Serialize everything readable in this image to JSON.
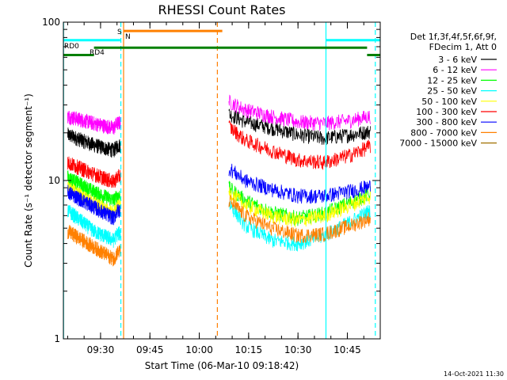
{
  "chart_data": {
    "type": "line",
    "title": "RHESSI Count Rates",
    "xlabel": "Start Time (06-Mar-10 09:18:42)",
    "ylabel": "Count Rate (s⁻¹ detector segment⁻¹)",
    "y_scale": "log",
    "ylim": [
      1,
      100
    ],
    "xlim": [
      "09:18:42",
      "10:55:00"
    ],
    "x_ticks": [
      "09:30",
      "09:45",
      "10:00",
      "10:15",
      "10:30",
      "10:45"
    ],
    "y_ticks": [
      "1",
      "10",
      "100"
    ],
    "grid": false,
    "legend_position": "right",
    "legend_header": [
      "Det 1f,3f,4f,5f,6f,9f,",
      "FDecim 1, Att 0"
    ],
    "series": [
      {
        "name": "3 - 6 keV",
        "color": "#000000",
        "x": [
          "09:20",
          "09:28",
          "09:34",
          "09:35",
          "10:09",
          "10:14",
          "10:22",
          "10:30",
          "10:38",
          "10:46",
          "10:52"
        ],
        "y": [
          19.5,
          16.8,
          15.5,
          16.5,
          26.5,
          23.5,
          21.5,
          19.5,
          18.5,
          19.5,
          20.5
        ]
      },
      {
        "name": "6 - 12 keV",
        "color": "#ff00ff",
        "x": [
          "09:20",
          "09:28",
          "09:34",
          "09:35",
          "10:09",
          "10:14",
          "10:22",
          "10:30",
          "10:38",
          "10:46",
          "10:52"
        ],
        "y": [
          25.5,
          23.0,
          21.5,
          23.0,
          31.5,
          28.0,
          25.5,
          23.5,
          23.0,
          24.0,
          25.5
        ]
      },
      {
        "name": "12 - 25 keV",
        "color": "#00ff00",
        "x": [
          "09:20",
          "09:28",
          "09:34",
          "09:35",
          "10:09",
          "10:14",
          "10:22",
          "10:30",
          "10:38",
          "10:46",
          "10:52"
        ],
        "y": [
          10.5,
          8.5,
          7.5,
          8.0,
          9.0,
          7.5,
          6.3,
          5.8,
          6.2,
          7.3,
          8.3
        ]
      },
      {
        "name": "25 - 50 keV",
        "color": "#00ffff",
        "x": [
          "09:20",
          "09:28",
          "09:34",
          "09:35",
          "10:09",
          "10:14",
          "10:22",
          "10:30",
          "10:38",
          "10:46",
          "10:52"
        ],
        "y": [
          6.5,
          4.8,
          4.2,
          4.6,
          7.2,
          5.2,
          4.2,
          4.0,
          4.5,
          5.5,
          6.5
        ]
      },
      {
        "name": "50 - 100 keV",
        "color": "#ffff00",
        "x": [
          "09:20",
          "09:28",
          "09:34",
          "09:35",
          "10:09",
          "10:14",
          "10:22",
          "10:30",
          "10:38",
          "10:46",
          "10:52"
        ],
        "y": [
          9.0,
          7.2,
          6.2,
          6.8,
          8.5,
          7.0,
          6.0,
          5.6,
          6.0,
          7.0,
          8.0
        ]
      },
      {
        "name": "100 - 300 keV",
        "color": "#ff0000",
        "x": [
          "09:20",
          "09:28",
          "09:34",
          "09:35",
          "10:09",
          "10:14",
          "10:22",
          "10:30",
          "10:38",
          "10:46",
          "10:52"
        ],
        "y": [
          13.0,
          11.0,
          9.8,
          10.5,
          22.0,
          18.0,
          15.5,
          13.5,
          13.0,
          14.5,
          16.5
        ]
      },
      {
        "name": "300 - 800 keV",
        "color": "#0000ff",
        "x": [
          "09:20",
          "09:28",
          "09:34",
          "09:35",
          "10:09",
          "10:14",
          "10:22",
          "10:30",
          "10:38",
          "10:46",
          "10:52"
        ],
        "y": [
          8.5,
          6.8,
          5.8,
          6.4,
          12.0,
          10.0,
          8.8,
          8.0,
          8.0,
          8.6,
          9.2
        ]
      },
      {
        "name": "800 - 7000 keV",
        "color": "#ff8000",
        "x": [
          "09:20",
          "09:28",
          "09:34",
          "09:35",
          "10:09",
          "10:14",
          "10:22",
          "10:30",
          "10:38",
          "10:46",
          "10:52"
        ],
        "y": [
          4.8,
          3.8,
          3.2,
          3.5,
          7.5,
          6.0,
          5.0,
          4.5,
          4.6,
          5.2,
          5.8
        ]
      },
      {
        "name": "7000 - 15000 keV",
        "color": "#a07000",
        "x": [],
        "y": []
      }
    ],
    "vertical_markers": [
      {
        "time": "09:18:45",
        "color": "#00ffff",
        "style": "solid"
      },
      {
        "time": "09:36:10",
        "color": "#00ffff",
        "style": "dashed"
      },
      {
        "time": "09:37:00",
        "color": "#ff8000",
        "style": "solid"
      },
      {
        "time": "10:05:30",
        "color": "#ff8000",
        "style": "dashed"
      },
      {
        "time": "10:38:30",
        "color": "#00ffff",
        "style": "solid"
      },
      {
        "time": "10:53:30",
        "color": "#00ffff",
        "style": "dashed"
      }
    ],
    "flag_bars": [
      {
        "label": "",
        "color": "#00ffff",
        "y": 77,
        "segments": [
          [
            "09:18:42",
            "09:36:00"
          ],
          [
            "10:38:30",
            "10:55:00"
          ]
        ]
      },
      {
        "label": "S",
        "color": "#ff8000",
        "y": 88,
        "segments": [
          [
            "09:37:00",
            "10:07:00"
          ]
        ]
      },
      {
        "label": "RD0",
        "color": "#008000",
        "y": 69,
        "segments": [
          [
            "09:28:00",
            "10:51:00"
          ]
        ]
      },
      {
        "label": "RD4",
        "color": "#008000",
        "y": 62,
        "segments": [
          [
            "09:18:42",
            "09:28:00"
          ],
          [
            "10:51:00",
            "10:55:00"
          ]
        ]
      }
    ],
    "annotations": [
      "S",
      "N",
      "RD0",
      "RD4"
    ],
    "footer_timestamp": "14-Oct-2021 11:30"
  }
}
